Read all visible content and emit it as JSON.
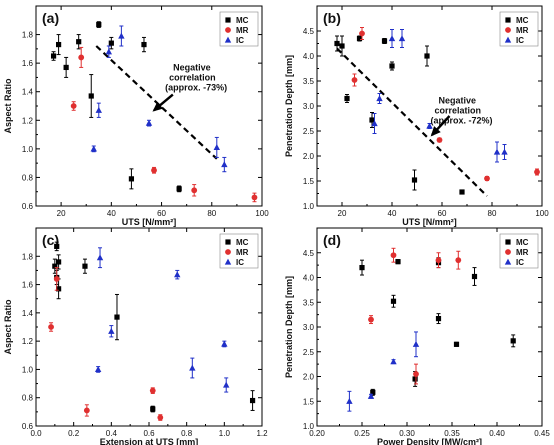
{
  "chart_data": [
    {
      "panel": "(a)",
      "type": "scatter",
      "xlabel": "UTS [N/mm²]",
      "ylabel": "Aspect Ratio",
      "xlim": [
        10,
        100
      ],
      "ylim": [
        0.6,
        2.0
      ],
      "xticks": [
        20,
        40,
        60,
        80,
        100
      ],
      "yticks": [
        0.6,
        0.8,
        1.0,
        1.2,
        1.4,
        1.6,
        1.8
      ],
      "legend": "top-right",
      "series": [
        {
          "name": "MC",
          "marker": "square",
          "color": "#000000",
          "points": [
            [
              17,
              1.65,
              0.03
            ],
            [
              19,
              1.73,
              0.07
            ],
            [
              22,
              1.57,
              0.07
            ],
            [
              27,
              1.75,
              0.05
            ],
            [
              32,
              1.37,
              0.15
            ],
            [
              35,
              1.87,
              0.02
            ],
            [
              40,
              1.74,
              0.04
            ],
            [
              53,
              1.73,
              0.05
            ],
            [
              48,
              0.79,
              0.07
            ],
            [
              67,
              0.72,
              0.02
            ]
          ]
        },
        {
          "name": "MR",
          "marker": "circle",
          "color": "#e03030",
          "points": [
            [
              25,
              1.3,
              0.03
            ],
            [
              28,
              1.64,
              0.07
            ],
            [
              57,
              0.85,
              0.02
            ],
            [
              73,
              0.71,
              0.04
            ],
            [
              97,
              0.66,
              0.03
            ]
          ]
        },
        {
          "name": "IC",
          "marker": "triangle",
          "color": "#2030c8",
          "points": [
            [
              33,
              1.0,
              0.02
            ],
            [
              35,
              1.27,
              0.05
            ],
            [
              39,
              1.68,
              0.04
            ],
            [
              44,
              1.79,
              0.07
            ],
            [
              55,
              1.18,
              0.02
            ],
            [
              82,
              1.01,
              0.07
            ],
            [
              85,
              0.89,
              0.05
            ]
          ]
        }
      ],
      "trendline": [
        [
          34,
          1.72
        ],
        [
          82,
          0.93
        ]
      ],
      "annotation": [
        "Negative",
        "correlation",
        "(approx. -73%)"
      ]
    },
    {
      "panel": "(b)",
      "type": "scatter",
      "xlabel": "UTS [N/mm²]",
      "ylabel": "Penetration Depth [mm]",
      "xlim": [
        10,
        100
      ],
      "ylim": [
        1.0,
        5.0
      ],
      "xticks": [
        20,
        40,
        60,
        80,
        100
      ],
      "yticks": [
        1.0,
        1.5,
        2.0,
        2.5,
        3.0,
        3.5,
        4.0,
        4.5
      ],
      "legend": "top-right",
      "series": [
        {
          "name": "MC",
          "marker": "square",
          "color": "#000000",
          "points": [
            [
              18,
              4.25,
              0.15
            ],
            [
              20,
              4.2,
              0.2
            ],
            [
              22,
              3.15,
              0.08
            ],
            [
              27,
              4.35,
              0.05
            ],
            [
              32,
              2.72,
              0.15
            ],
            [
              37,
              4.3,
              0.05
            ],
            [
              40,
              3.8,
              0.08
            ],
            [
              54,
              4.0,
              0.2
            ],
            [
              49,
              1.52,
              0.2
            ],
            [
              68,
              1.28,
              0.03
            ]
          ]
        },
        {
          "name": "MR",
          "marker": "circle",
          "color": "#e03030",
          "points": [
            [
              25,
              3.52,
              0.12
            ],
            [
              28,
              4.45,
              0.12
            ],
            [
              59,
              2.32,
              0.04
            ],
            [
              78,
              1.55,
              0.04
            ],
            [
              98,
              1.68,
              0.06
            ]
          ]
        },
        {
          "name": "IC",
          "marker": "triangle",
          "color": "#2030c8",
          "points": [
            [
              33,
              2.65,
              0.2
            ],
            [
              35,
              3.15,
              0.1
            ],
            [
              40,
              4.35,
              0.18
            ],
            [
              44,
              4.35,
              0.18
            ],
            [
              55,
              2.6,
              0.05
            ],
            [
              82,
              2.08,
              0.2
            ],
            [
              85,
              2.08,
              0.15
            ]
          ]
        }
      ],
      "trendline": [
        [
          18,
          4.15
        ],
        [
          78,
          1.2
        ]
      ],
      "annotation": [
        "Negative",
        "correlation",
        "(approx. -72%)"
      ]
    },
    {
      "panel": "(c)",
      "type": "scatter",
      "xlabel": "Extension at UTS [mm]",
      "ylabel": "Aspect Ratio",
      "xlim": [
        0.0,
        1.2
      ],
      "ylim": [
        0.6,
        2.0
      ],
      "xticks": [
        0.0,
        0.2,
        0.4,
        0.6,
        0.8,
        1.0,
        1.2
      ],
      "yticks": [
        0.6,
        0.8,
        1.0,
        1.2,
        1.4,
        1.6,
        1.8
      ],
      "legend": "top-right",
      "series": [
        {
          "name": "MC",
          "marker": "square",
          "color": "#000000",
          "points": [
            [
              0.1,
              1.73,
              0.05
            ],
            [
              0.11,
              1.87,
              0.03
            ],
            [
              0.12,
              1.76,
              0.05
            ],
            [
              0.12,
              1.57,
              0.07
            ],
            [
              0.11,
              1.65,
              0.05
            ],
            [
              0.26,
              1.73,
              0.05
            ],
            [
              0.43,
              1.37,
              0.16
            ],
            [
              0.62,
              0.72,
              0.02
            ],
            [
              1.15,
              0.78,
              0.07
            ]
          ]
        },
        {
          "name": "MR",
          "marker": "circle",
          "color": "#e03030",
          "points": [
            [
              0.08,
              1.3,
              0.03
            ],
            [
              0.11,
              1.64,
              0.08
            ],
            [
              0.27,
              0.71,
              0.04
            ],
            [
              0.62,
              0.85,
              0.02
            ],
            [
              0.66,
              0.66,
              0.02
            ]
          ]
        },
        {
          "name": "IC",
          "marker": "triangle",
          "color": "#2030c8",
          "points": [
            [
              0.33,
              1.0,
              0.02
            ],
            [
              0.34,
              1.79,
              0.07
            ],
            [
              0.4,
              1.27,
              0.04
            ],
            [
              0.75,
              1.67,
              0.03
            ],
            [
              0.83,
              1.01,
              0.07
            ],
            [
              1.0,
              1.18,
              0.02
            ],
            [
              1.01,
              0.89,
              0.05
            ]
          ]
        }
      ]
    },
    {
      "panel": "(d)",
      "type": "scatter",
      "xlabel": "Power Density [MW/cm²]",
      "ylabel": "Penetration Depth [mm]",
      "xlim": [
        0.2,
        0.45
      ],
      "ylim": [
        1.0,
        5.0
      ],
      "xticks": [
        0.2,
        0.25,
        0.3,
        0.35,
        0.4,
        0.45
      ],
      "yticks": [
        1.0,
        1.5,
        2.0,
        2.5,
        3.0,
        3.5,
        4.0,
        4.5
      ],
      "legend": "top-right",
      "series": [
        {
          "name": "MC",
          "marker": "square",
          "color": "#000000",
          "points": [
            [
              0.25,
              4.2,
              0.15
            ],
            [
              0.262,
              1.68,
              0.06
            ],
            [
              0.285,
              3.52,
              0.12
            ],
            [
              0.29,
              4.32,
              0.04
            ],
            [
              0.309,
              1.95,
              0.15
            ],
            [
              0.335,
              4.3,
              0.1
            ],
            [
              0.335,
              3.17,
              0.1
            ],
            [
              0.355,
              2.65,
              0.04
            ],
            [
              0.375,
              4.02,
              0.18
            ],
            [
              0.418,
              2.72,
              0.12
            ]
          ]
        },
        {
          "name": "MR",
          "marker": "circle",
          "color": "#e03030",
          "points": [
            [
              0.26,
              3.15,
              0.08
            ],
            [
              0.285,
              4.45,
              0.14
            ],
            [
              0.31,
              2.05,
              0.2
            ],
            [
              0.335,
              4.35,
              0.15
            ],
            [
              0.357,
              4.35,
              0.18
            ]
          ]
        },
        {
          "name": "IC",
          "marker": "triangle",
          "color": "#2030c8",
          "points": [
            [
              0.236,
              1.5,
              0.2
            ],
            [
              0.26,
              1.6,
              0.04
            ],
            [
              0.285,
              2.3,
              0.04
            ],
            [
              0.31,
              2.65,
              0.25
            ]
          ]
        }
      ]
    }
  ]
}
